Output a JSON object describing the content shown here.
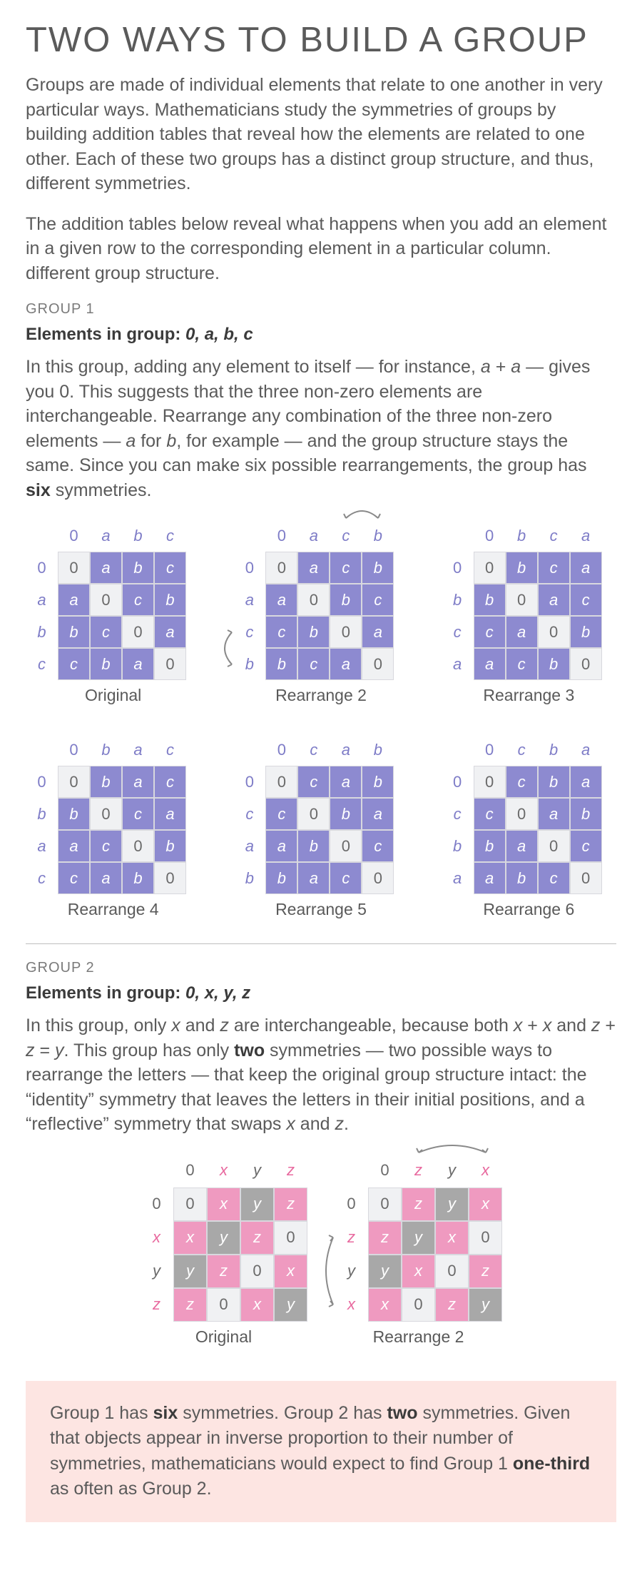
{
  "title": "TWO WAYS TO BUILD A GROUP",
  "intro1": "Groups are made of individual elements that relate to one another in very particular ways. Mathematicians study the symmetries of groups by building addition tables that reveal how the elements are related to one other. Each of these two groups has a distinct group structure, and thus, different symmetries.",
  "intro2": "The addition tables below reveal what happens when you add an element in a given row to the corresponding element in a particular column. different group structure.",
  "group1": {
    "label": "GROUP 1",
    "elements_pre": "Elements in group: ",
    "elements_list": "0, a, b, c",
    "body_html": "In this group, adding any element to itself — for instance, <span class='it'>a</span> + <span class='it'>a</span> — gives you 0. This suggests that the three non-zero elements are interchangeable. Rearrange any combination of the three non-zero elements — <span class='it'>a</span> for <span class='it'>b</span>, for example — and the group structure stays the same. Since you can make six possible rearrangements, the group has <b>six</b> symmetries.",
    "header_color": "#7e7cc7",
    "cell_fill": "#8d8ad0",
    "cell_empty": "#f0f1f3",
    "cell_text_on_fill": "#ffffff",
    "cell_text_on_empty": "#6a6a6a",
    "cell_size": 45,
    "tables": [
      {
        "caption": "Original",
        "rowcol": [
          "0",
          "a",
          "b",
          "c"
        ],
        "grid": [
          [
            "0",
            "a",
            "b",
            "c"
          ],
          [
            "a",
            "0",
            "c",
            "b"
          ],
          [
            "b",
            "c",
            "0",
            "a"
          ],
          [
            "c",
            "b",
            "a",
            "0"
          ]
        ],
        "swap_h": null,
        "swap_v": null
      },
      {
        "caption": "Rearrange 2",
        "rowcol": [
          "0",
          "a",
          "c",
          "b"
        ],
        "grid": [
          [
            "0",
            "a",
            "c",
            "b"
          ],
          [
            "a",
            "0",
            "b",
            "c"
          ],
          [
            "c",
            "b",
            "0",
            "a"
          ],
          [
            "b",
            "c",
            "a",
            "0"
          ]
        ],
        "swap_h": [
          2,
          3
        ],
        "swap_v": [
          2,
          3
        ]
      },
      {
        "caption": "Rearrange 3",
        "rowcol": [
          "0",
          "b",
          "c",
          "a"
        ],
        "grid": [
          [
            "0",
            "b",
            "c",
            "a"
          ],
          [
            "b",
            "0",
            "a",
            "c"
          ],
          [
            "c",
            "a",
            "0",
            "b"
          ],
          [
            "a",
            "c",
            "b",
            "0"
          ]
        ],
        "swap_h": null,
        "swap_v": null
      },
      {
        "caption": "Rearrange 4",
        "rowcol": [
          "0",
          "b",
          "a",
          "c"
        ],
        "grid": [
          [
            "0",
            "b",
            "a",
            "c"
          ],
          [
            "b",
            "0",
            "c",
            "a"
          ],
          [
            "a",
            "c",
            "0",
            "b"
          ],
          [
            "c",
            "a",
            "b",
            "0"
          ]
        ],
        "swap_h": null,
        "swap_v": null
      },
      {
        "caption": "Rearrange 5",
        "rowcol": [
          "0",
          "c",
          "a",
          "b"
        ],
        "grid": [
          [
            "0",
            "c",
            "a",
            "b"
          ],
          [
            "c",
            "0",
            "b",
            "a"
          ],
          [
            "a",
            "b",
            "0",
            "c"
          ],
          [
            "b",
            "a",
            "c",
            "0"
          ]
        ],
        "swap_h": null,
        "swap_v": null
      },
      {
        "caption": "Rearrange 6",
        "rowcol": [
          "0",
          "c",
          "b",
          "a"
        ],
        "grid": [
          [
            "0",
            "c",
            "b",
            "a"
          ],
          [
            "c",
            "0",
            "a",
            "b"
          ],
          [
            "b",
            "a",
            "0",
            "c"
          ],
          [
            "a",
            "b",
            "c",
            "0"
          ]
        ],
        "swap_h": null,
        "swap_v": null
      }
    ]
  },
  "group2": {
    "label": "GROUP 2",
    "elements_pre": "Elements in group: ",
    "elements_list": "0, x, y, z",
    "body_html": "In this group, only <span class='it'>x</span> and <span class='it'>z</span> are interchangeable, because both <span class='it'>x</span> + <span class='it'>x</span> and <span class='it'>z</span> + <span class='it'>z</span> = <span class='it'>y</span>. This group has only <b>two</b> symmetries — two possible ways to rearrange the letters — that keep the original group structure intact: the “identity” symmetry that leaves the letters in their initial positions, and a “reflective” symmetry that swaps <span class='it'>x</span> and <span class='it'>z</span>.",
    "header_color_emph": "#e86a9f",
    "header_color_plain": "#6a6a6a",
    "cell_fill_pink": "#ef9ac0",
    "cell_fill_gray": "#a8a8a8",
    "cell_empty": "#f0f1f3",
    "cell_text_on_fill": "#ffffff",
    "cell_text_on_empty": "#6a6a6a",
    "cell_size": 47,
    "tables": [
      {
        "caption": "Original",
        "col_hdr": [
          "0",
          "x",
          "y",
          "z"
        ],
        "col_emph": [
          false,
          true,
          false,
          true
        ],
        "row_hdr": [
          "0",
          "x",
          "y",
          "z"
        ],
        "row_emph": [
          false,
          true,
          false,
          true
        ],
        "grid": [
          [
            "0",
            "x",
            "y",
            "z"
          ],
          [
            "x",
            "y",
            "z",
            "0"
          ],
          [
            "y",
            "z",
            "0",
            "x"
          ],
          [
            "z",
            "0",
            "x",
            "y"
          ]
        ],
        "fill": [
          [
            "e",
            "p",
            "g",
            "p"
          ],
          [
            "p",
            "g",
            "p",
            "e"
          ],
          [
            "g",
            "p",
            "e",
            "p"
          ],
          [
            "p",
            "e",
            "p",
            "g"
          ]
        ],
        "swap_h": null,
        "swap_v": null
      },
      {
        "caption": "Rearrange 2",
        "col_hdr": [
          "0",
          "z",
          "y",
          "x"
        ],
        "col_emph": [
          false,
          true,
          false,
          true
        ],
        "row_hdr": [
          "0",
          "z",
          "y",
          "x"
        ],
        "row_emph": [
          false,
          true,
          false,
          true
        ],
        "grid": [
          [
            "0",
            "z",
            "y",
            "x"
          ],
          [
            "z",
            "y",
            "x",
            "0"
          ],
          [
            "y",
            "x",
            "0",
            "z"
          ],
          [
            "x",
            "0",
            "z",
            "y"
          ]
        ],
        "fill": [
          [
            "e",
            "p",
            "g",
            "p"
          ],
          [
            "p",
            "g",
            "p",
            "e"
          ],
          [
            "g",
            "p",
            "e",
            "p"
          ],
          [
            "p",
            "e",
            "p",
            "g"
          ]
        ],
        "swap_h": [
          1,
          3
        ],
        "swap_v": [
          1,
          3
        ]
      }
    ]
  },
  "summary_html": "Group 1 has <b>six</b> symmetries. Group 2 has <b>two</b> symmetries. Given that objects appear in inverse proportion to their number of symmetries, mathematicians would expect to find Group 1 <b>one-third</b> as often as Group 2."
}
